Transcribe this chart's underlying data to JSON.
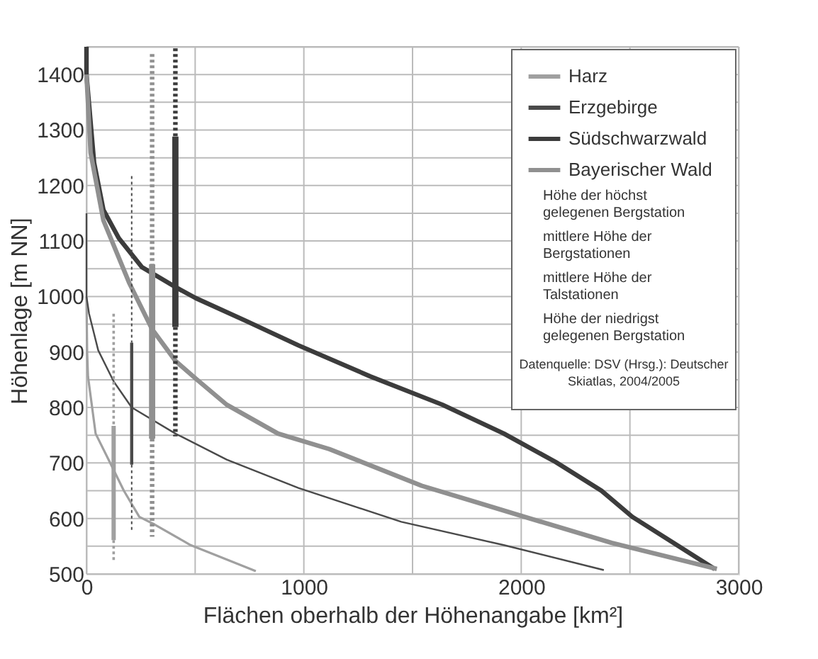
{
  "chart_data": {
    "type": "line",
    "xlabel": "Flächen oberhalb der Höhenangabe [km²]",
    "ylabel": "Höhenlage [m NN]",
    "xlim": [
      0,
      3000
    ],
    "ylim": [
      500,
      1450
    ],
    "xticks": [
      0,
      {
        "value": 500,
        "label": null
      },
      1000,
      {
        "value": 1500,
        "label": null
      },
      2000,
      {
        "value": 2500,
        "label": null
      },
      3000
    ],
    "yticks": [
      500,
      {
        "value": 550,
        "label": null
      },
      600,
      {
        "value": 650,
        "label": null
      },
      700,
      {
        "value": 750,
        "label": null
      },
      800,
      {
        "value": 850,
        "label": null
      },
      900,
      {
        "value": 950,
        "label": null
      },
      1000,
      {
        "value": 1050,
        "label": null
      },
      1100,
      {
        "value": 1150,
        "label": null
      },
      1200,
      {
        "value": 1250,
        "label": null
      },
      1300,
      {
        "value": 1350,
        "label": null
      },
      1400,
      {
        "value": 1450,
        "label": null
      }
    ],
    "grid": true,
    "legend": "top right",
    "series": [
      {
        "name": "Harz",
        "color": "#a0a0a0",
        "line_style": "solid",
        "x": [
          0,
          3,
          7,
          42,
          113,
          172,
          243,
          314,
          479,
          779
        ],
        "values": [
          1000,
          900,
          856,
          753,
          697,
          650,
          603,
          589,
          552,
          505
        ]
      },
      {
        "name": "Erzgebirge",
        "color": "#4a4a4a",
        "line_style": "solid",
        "x": [
          0,
          0,
          12,
          54,
          125,
          208,
          409,
          645,
          975,
          1448,
          1920,
          2380
        ],
        "values": [
          1150,
          1000,
          969,
          903,
          847,
          800,
          753,
          706,
          655,
          594,
          552,
          507
        ]
      },
      {
        "name": "Südschwarzwald",
        "color": "#3c3c3c",
        "line_style": "solid",
        "x": [
          0,
          0,
          35,
          78,
          149,
          255,
          409,
          503,
          739,
          975,
          1306,
          1637,
          1920,
          2157,
          2369,
          2511,
          2890
        ],
        "values": [
          1450,
          1400,
          1241,
          1156,
          1105,
          1053,
          1017,
          997,
          955,
          912,
          856,
          805,
          753,
          702,
          650,
          603,
          509
        ]
      },
      {
        "name": "Bayerischer Wald",
        "color": "#909090",
        "line_style": "solid",
        "x": [
          0,
          19,
          78,
          196,
          302,
          409,
          503,
          645,
          881,
          1117,
          1542,
          1779,
          2015,
          2416,
          2900
        ],
        "values": [
          1400,
          1259,
          1137,
          1025,
          941,
          884,
          852,
          805,
          753,
          725,
          659,
          631,
          603,
          556,
          509
        ]
      },
      {
        "color": "#a0a0a0",
        "line_style": "dotted",
        "x": [
          125,
          125
        ],
        "values": [
          969,
          767
        ]
      },
      {
        "color": "#a0a0a0",
        "line_style": "solid",
        "x": [
          125,
          125
        ],
        "values": [
          767,
          561
        ]
      },
      {
        "color": "#a0a0a0",
        "line_style": "dotted",
        "x": [
          125,
          125
        ],
        "values": [
          561,
          523
        ]
      },
      {
        "color": "#4a4a4a",
        "line_style": "dotted",
        "x": [
          208,
          208
        ],
        "values": [
          1217,
          917
        ]
      },
      {
        "color": "#4a4a4a",
        "line_style": "solid",
        "x": [
          208,
          208
        ],
        "values": [
          917,
          697
        ]
      },
      {
        "color": "#4a4a4a",
        "line_style": "dotted",
        "x": [
          208,
          208
        ],
        "values": [
          697,
          575
        ]
      },
      {
        "color": "#909090",
        "line_style": "dotted",
        "x": [
          302,
          302
        ],
        "values": [
          1437,
          1058
        ]
      },
      {
        "color": "#909090",
        "line_style": "solid",
        "x": [
          302,
          302
        ],
        "values": [
          1058,
          744
        ]
      },
      {
        "color": "#909090",
        "line_style": "dotted",
        "x": [
          302,
          302
        ],
        "values": [
          744,
          567
        ]
      },
      {
        "color": "#3c3c3c",
        "line_style": "dotted",
        "x": [
          409,
          409
        ],
        "values": [
          1447,
          1288
        ]
      },
      {
        "color": "#3c3c3c",
        "line_style": "solid",
        "x": [
          409,
          409
        ],
        "values": [
          1288,
          945
        ]
      },
      {
        "color": "#3c3c3c",
        "line_style": "dotted",
        "x": [
          409,
          409
        ],
        "values": [
          945,
          748
        ]
      }
    ],
    "annotations": [
      "Höhe der höchst\ngelegenen Bergstation",
      "mittlere Höhe der\nBergstationen",
      "mittlere Höhe der\nTalstationen",
      "Höhe der niedrigst\ngelegenen Bergstation",
      "Datenquelle: DSV (Hrsg.): Deutscher\nSkiatlas, 2004/2005"
    ]
  }
}
